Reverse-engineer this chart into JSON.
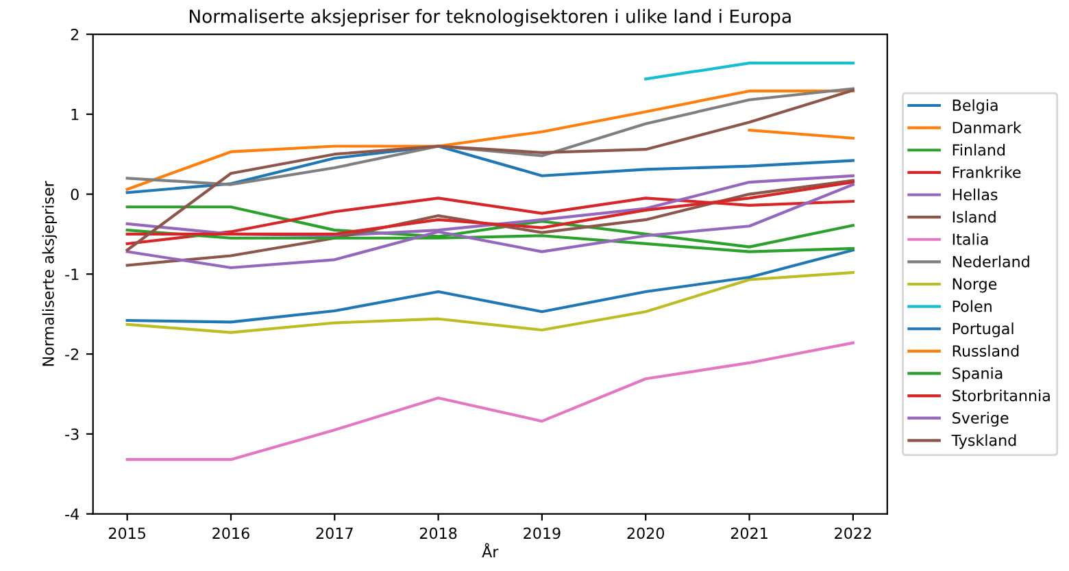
{
  "chart_data": {
    "type": "line",
    "title": "Normaliserte aksjepriser for teknologisektoren i ulike land i Europa",
    "xlabel": "År",
    "ylabel": "Normaliserte aksjepriser",
    "x": [
      2015,
      2016,
      2017,
      2018,
      2019,
      2020,
      2021,
      2022
    ],
    "xlim": [
      2014.67,
      2022.33
    ],
    "xticks": [
      2015,
      2016,
      2017,
      2018,
      2019,
      2020,
      2021,
      2022
    ],
    "ylim": [
      -4,
      2
    ],
    "yticks": [
      -4,
      -3,
      -2,
      -1,
      0,
      1,
      2
    ],
    "legend": "right",
    "grid": false,
    "series": [
      {
        "name": "Belgia",
        "color": "#1f77b4",
        "values": [
          0.02,
          0.13,
          0.45,
          0.6,
          0.23,
          0.31,
          0.35,
          0.42
        ]
      },
      {
        "name": "Danmark",
        "color": "#ff7f0e",
        "values": [
          0.06,
          0.53,
          0.6,
          0.6,
          0.78,
          1.03,
          1.29,
          1.29
        ]
      },
      {
        "name": "Finland",
        "color": "#2ca02c",
        "values": [
          -0.16,
          -0.16,
          -0.45,
          -0.53,
          -0.34,
          -0.5,
          -0.66,
          -0.39
        ]
      },
      {
        "name": "Frankrike",
        "color": "#d62728",
        "values": [
          -0.62,
          -0.47,
          -0.22,
          -0.05,
          -0.24,
          -0.05,
          -0.14,
          -0.09
        ]
      },
      {
        "name": "Hellas",
        "color": "#9467bd",
        "values": [
          -0.37,
          -0.5,
          -0.52,
          -0.45,
          -0.32,
          -0.18,
          0.15,
          0.23
        ]
      },
      {
        "name": "Island",
        "color": "#8c564b",
        "values": [
          -0.89,
          -0.77,
          -0.55,
          -0.27,
          -0.48,
          -0.32,
          0.0,
          0.17
        ]
      },
      {
        "name": "Italia",
        "color": "#e377c2",
        "values": [
          -3.32,
          -3.32,
          -2.95,
          -2.55,
          -2.84,
          -2.31,
          -2.11,
          -1.86
        ]
      },
      {
        "name": "Nederland",
        "color": "#7f7f7f",
        "values": [
          0.2,
          0.12,
          0.33,
          0.6,
          0.48,
          0.88,
          1.18,
          1.32
        ]
      },
      {
        "name": "Norge",
        "color": "#bcbd22",
        "values": [
          -1.63,
          -1.73,
          -1.61,
          -1.56,
          -1.7,
          -1.47,
          -1.07,
          -0.98
        ]
      },
      {
        "name": "Polen",
        "color": "#17becf",
        "values": [
          null,
          null,
          null,
          null,
          null,
          1.44,
          1.64,
          1.64
        ]
      },
      {
        "name": "Portugal",
        "color": "#1f77b4",
        "values": [
          -1.58,
          -1.6,
          -1.46,
          -1.22,
          -1.47,
          -1.22,
          -1.04,
          -0.7
        ]
      },
      {
        "name": "Russland",
        "color": "#ff7f0e",
        "values": [
          null,
          null,
          null,
          null,
          null,
          null,
          0.8,
          0.7
        ]
      },
      {
        "name": "Spania",
        "color": "#2ca02c",
        "values": [
          -0.45,
          -0.55,
          -0.55,
          -0.55,
          -0.52,
          -0.62,
          -0.72,
          -0.68
        ]
      },
      {
        "name": "Storbritannia",
        "color": "#d62728",
        "values": [
          -0.5,
          -0.5,
          -0.5,
          -0.32,
          -0.42,
          -0.2,
          -0.05,
          0.15
        ]
      },
      {
        "name": "Sverige",
        "color": "#9467bd",
        "values": [
          -0.72,
          -0.92,
          -0.82,
          -0.47,
          -0.72,
          -0.52,
          -0.4,
          0.12
        ]
      },
      {
        "name": "Tyskland",
        "color": "#8c564b",
        "values": [
          -0.7,
          0.26,
          0.5,
          0.6,
          0.52,
          0.56,
          0.9,
          1.3
        ]
      }
    ]
  }
}
